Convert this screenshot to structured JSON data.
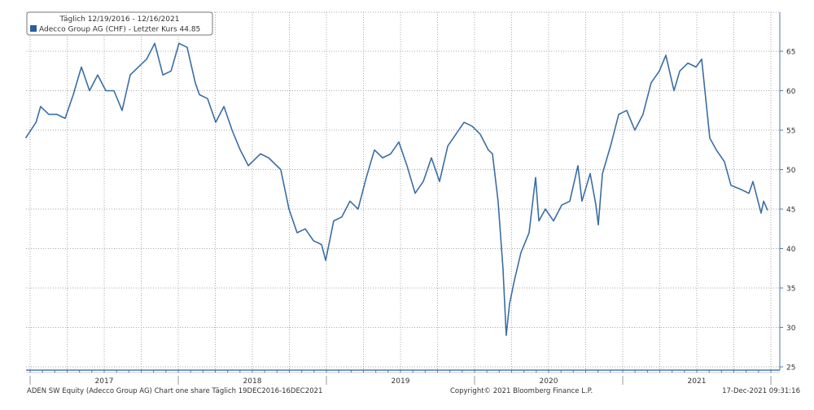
{
  "chart_data": {
    "type": "line",
    "legend": {
      "title": "Täglich 12/19/2016 - 12/16/2021",
      "series_label": "Adecco Group AG (CHF) - Letzter Kurs 44.85",
      "placement": "top-left"
    },
    "ylim": [
      25,
      70
    ],
    "yticks": [
      25,
      30,
      35,
      40,
      45,
      50,
      55,
      60,
      65
    ],
    "xlim": [
      2016.97,
      2021.98
    ],
    "year_labels": [
      "2017",
      "2018",
      "2019",
      "2020",
      "2021"
    ],
    "grid": true,
    "color": "#3a6ea5",
    "series": [
      {
        "name": "Adecco Group AG (CHF)",
        "x": [
          2016.97,
          2017.04,
          2017.071,
          2017.126,
          2017.181,
          2017.236,
          2017.291,
          2017.346,
          2017.401,
          2017.456,
          2017.511,
          2017.566,
          2017.621,
          2017.676,
          2017.731,
          2017.786,
          2017.841,
          2017.896,
          2017.951,
          2018.005,
          2018.06,
          2018.115,
          2018.143,
          2018.198,
          2018.253,
          2018.308,
          2018.363,
          2018.418,
          2018.473,
          2018.555,
          2018.61,
          2018.692,
          2018.747,
          2018.802,
          2018.857,
          2018.912,
          2018.967,
          2018.995,
          2019.049,
          2019.104,
          2019.159,
          2019.214,
          2019.269,
          2019.324,
          2019.379,
          2019.434,
          2019.489,
          2019.544,
          2019.599,
          2019.654,
          2019.709,
          2019.764,
          2019.819,
          2019.874,
          2019.929,
          2019.984,
          2020.038,
          2020.093,
          2020.121,
          2020.159,
          2020.192,
          2020.214,
          2020.236,
          2020.269,
          2020.313,
          2020.368,
          2020.396,
          2020.412,
          2020.434,
          2020.478,
          2020.533,
          2020.588,
          2020.643,
          2020.698,
          2020.725,
          2020.78,
          2020.819,
          2020.835,
          2020.863,
          2020.918,
          2020.973,
          2021.027,
          2021.082,
          2021.137,
          2021.192,
          2021.247,
          2021.291,
          2021.346,
          2021.385,
          2021.44,
          2021.495,
          2021.533,
          2021.555,
          2021.588,
          2021.632,
          2021.687,
          2021.731,
          2021.797,
          2021.852,
          2021.879,
          2021.934,
          2021.951,
          2021.978
        ],
        "values": [
          54,
          56,
          58,
          57,
          57,
          56.5,
          59.5,
          63,
          60,
          62,
          60,
          60,
          57.5,
          62,
          63,
          64,
          66,
          62,
          62.5,
          66,
          65.5,
          61,
          59.5,
          59,
          56,
          58,
          55,
          52.5,
          50.5,
          52,
          51.5,
          50,
          45,
          42,
          42.5,
          41,
          40.5,
          38.5,
          43.5,
          44,
          46,
          45,
          49,
          52.5,
          51.5,
          52,
          53.5,
          50.5,
          47,
          48.5,
          51.5,
          48.5,
          53,
          54.5,
          56,
          55.5,
          54.5,
          52.5,
          52,
          46,
          37.5,
          29,
          33,
          36,
          39.5,
          42,
          46.5,
          49,
          43.5,
          45,
          43.5,
          45.5,
          46,
          50.5,
          46,
          49.5,
          45.5,
          43,
          49.5,
          53,
          57,
          57.5,
          55,
          57,
          61,
          62.5,
          64.5,
          60,
          62.5,
          63.5,
          63,
          64,
          60,
          54,
          52.5,
          51,
          48,
          47.5,
          47,
          48.5,
          44.5,
          46,
          44.85
        ]
      }
    ]
  },
  "footer": {
    "left": "ADEN SW Equity (Adecco Group AG) Chart one share  Täglich 19DEC2016-16DEC2021",
    "center": "Copyright© 2021 Bloomberg Finance L.P.",
    "right": "17-Dec-2021 09:31:16"
  }
}
